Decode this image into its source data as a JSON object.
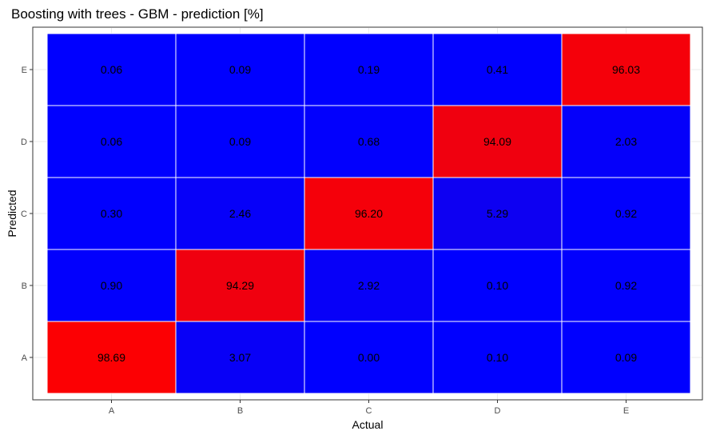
{
  "chart_data": {
    "type": "heatmap",
    "title": "Boosting with trees - GBM - prediction [%]",
    "xlabel": "Actual",
    "ylabel": "Predicted",
    "x_categories": [
      "A",
      "B",
      "C",
      "D",
      "E"
    ],
    "y_categories": [
      "A",
      "B",
      "C",
      "D",
      "E"
    ],
    "cells": [
      {
        "actual": "A",
        "predicted": "A",
        "value": 98.69,
        "label": "98.69"
      },
      {
        "actual": "B",
        "predicted": "A",
        "value": 3.07,
        "label": "3.07"
      },
      {
        "actual": "C",
        "predicted": "A",
        "value": 0.0,
        "label": "0.00"
      },
      {
        "actual": "D",
        "predicted": "A",
        "value": 0.1,
        "label": "0.10"
      },
      {
        "actual": "E",
        "predicted": "A",
        "value": 0.09,
        "label": "0.09"
      },
      {
        "actual": "A",
        "predicted": "B",
        "value": 0.9,
        "label": "0.90"
      },
      {
        "actual": "B",
        "predicted": "B",
        "value": 94.29,
        "label": "94.29"
      },
      {
        "actual": "C",
        "predicted": "B",
        "value": 2.92,
        "label": "2.92"
      },
      {
        "actual": "D",
        "predicted": "B",
        "value": 0.1,
        "label": "0.10"
      },
      {
        "actual": "E",
        "predicted": "B",
        "value": 0.92,
        "label": "0.92"
      },
      {
        "actual": "A",
        "predicted": "C",
        "value": 0.3,
        "label": "0.30"
      },
      {
        "actual": "B",
        "predicted": "C",
        "value": 2.46,
        "label": "2.46"
      },
      {
        "actual": "C",
        "predicted": "C",
        "value": 96.2,
        "label": "96.20"
      },
      {
        "actual": "D",
        "predicted": "C",
        "value": 5.29,
        "label": "5.29"
      },
      {
        "actual": "E",
        "predicted": "C",
        "value": 0.92,
        "label": "0.92"
      },
      {
        "actual": "A",
        "predicted": "D",
        "value": 0.06,
        "label": "0.06"
      },
      {
        "actual": "B",
        "predicted": "D",
        "value": 0.09,
        "label": "0.09"
      },
      {
        "actual": "C",
        "predicted": "D",
        "value": 0.68,
        "label": "0.68"
      },
      {
        "actual": "D",
        "predicted": "D",
        "value": 94.09,
        "label": "94.09"
      },
      {
        "actual": "E",
        "predicted": "D",
        "value": 2.03,
        "label": "2.03"
      },
      {
        "actual": "A",
        "predicted": "E",
        "value": 0.06,
        "label": "0.06"
      },
      {
        "actual": "B",
        "predicted": "E",
        "value": 0.09,
        "label": "0.09"
      },
      {
        "actual": "C",
        "predicted": "E",
        "value": 0.19,
        "label": "0.19"
      },
      {
        "actual": "D",
        "predicted": "E",
        "value": 0.41,
        "label": "0.41"
      },
      {
        "actual": "E",
        "predicted": "E",
        "value": 96.03,
        "label": "96.03"
      }
    ],
    "color_low": "#0000ff",
    "color_high": "#ff0000",
    "value_range": [
      0,
      100
    ],
    "legend": "none",
    "grid": true
  }
}
